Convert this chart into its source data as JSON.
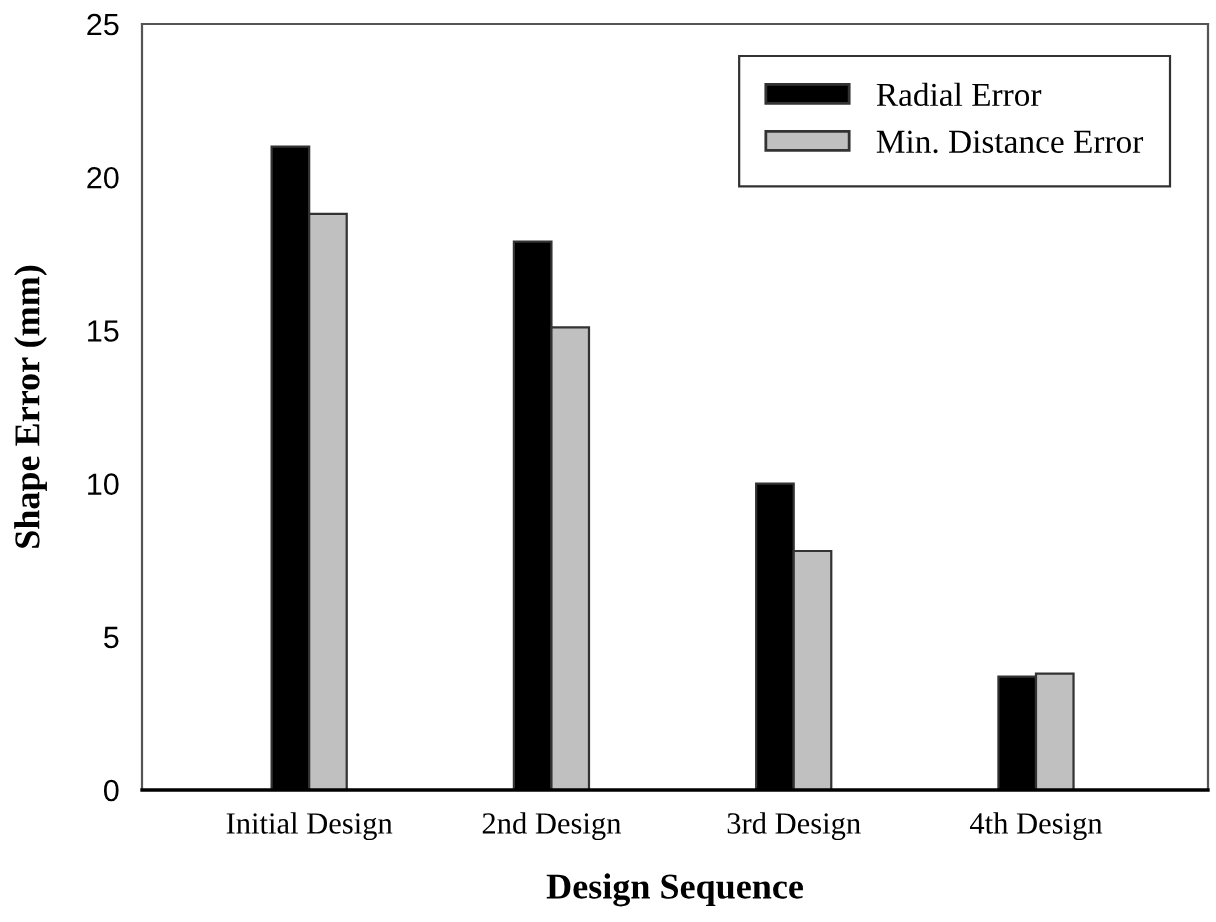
{
  "chart_data": {
    "type": "bar",
    "xlabel": "Design Sequence",
    "ylabel": "Shape Error (mm)",
    "categories": [
      "Initial Design",
      "2nd Design",
      "3rd Design",
      "4th Design"
    ],
    "series": [
      {
        "name": "Radial Error",
        "color": "#000000",
        "values": [
          21.0,
          17.9,
          10.0,
          3.7
        ]
      },
      {
        "name": "Min. Distance Error",
        "color": "#c0c0c0",
        "values": [
          18.8,
          15.1,
          7.8,
          3.8
        ]
      }
    ],
    "ylim": [
      0,
      25
    ],
    "yticks": [
      0,
      5,
      10,
      15,
      20,
      25
    ],
    "grid": false,
    "legend": "top right"
  }
}
